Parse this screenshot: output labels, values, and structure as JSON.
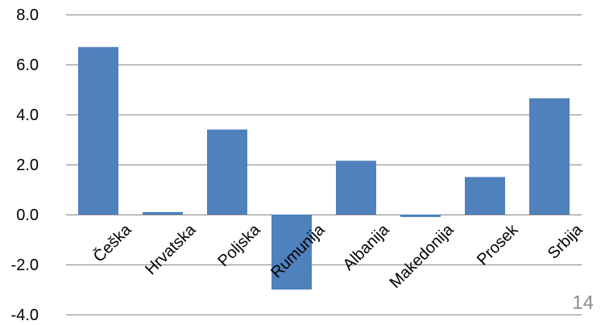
{
  "page_number": "14",
  "colors": {
    "bar": "#4f81bd",
    "gridline": "#868686",
    "text": "#000000",
    "page_number": "#8c8c8c"
  },
  "chart_data": {
    "type": "bar",
    "categories": [
      "Češka",
      "Hrvatska",
      "Poljska",
      "Rumunija",
      "Albanija",
      "Makedonija",
      "Prosek",
      "Srbija"
    ],
    "values": [
      6.7,
      0.1,
      3.4,
      -3.0,
      2.15,
      -0.1,
      1.5,
      4.65
    ],
    "title": "",
    "xlabel": "",
    "ylabel": "",
    "ylim": [
      -4.0,
      8.0
    ],
    "yticks": [
      "8.0",
      "6.0",
      "4.0",
      "2.0",
      "0.0",
      "-2.0",
      "-4.0"
    ],
    "grid": true,
    "legend": "none"
  }
}
